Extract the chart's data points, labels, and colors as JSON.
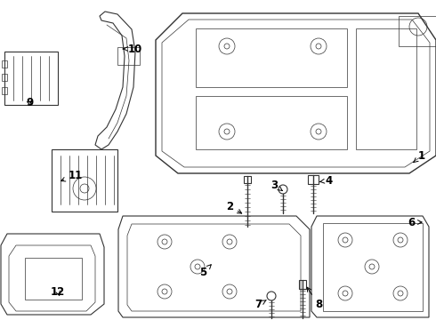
{
  "bg_color": "#ffffff",
  "line_color": "#333333",
  "line_width": 0.8,
  "thin_line": 0.5,
  "label_fontsize": 8.5,
  "label_color": "#000000",
  "title": ""
}
